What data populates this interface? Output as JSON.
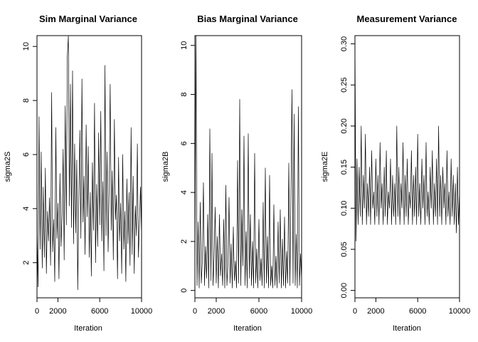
{
  "figure": {
    "background": "#ffffff",
    "line_color": "#000000"
  },
  "chart_data": [
    {
      "type": "line",
      "title": "Sim Marginal Variance",
      "xlabel": "Iteration",
      "ylabel": "sigma2S",
      "xlim": [
        0,
        10000
      ],
      "ylim": [
        0.7,
        10.4
      ],
      "xticks": [
        0,
        2000,
        6000,
        10000
      ],
      "xtick_labels": [
        "0",
        "2000",
        "6000",
        "10000"
      ],
      "yticks": [
        2,
        4,
        6,
        8,
        10
      ],
      "ytick_labels": [
        "2",
        "4",
        "6",
        "8",
        "10"
      ],
      "series": [
        {
          "x": [
            0,
            100,
            200,
            300,
            400,
            500,
            600,
            700,
            800,
            900,
            1000,
            1100,
            1200,
            1300,
            1400,
            1500,
            1600,
            1700,
            1800,
            1900,
            2000,
            2100,
            2200,
            2300,
            2400,
            2500,
            2600,
            2700,
            2800,
            2900,
            3000,
            3100,
            3200,
            3300,
            3400,
            3500,
            3600,
            3700,
            3800,
            3900,
            4000,
            4100,
            4200,
            4300,
            4400,
            4500,
            4600,
            4700,
            4800,
            4900,
            5000,
            5100,
            5200,
            5300,
            5400,
            5500,
            5600,
            5700,
            5800,
            5900,
            6000,
            6100,
            6200,
            6300,
            6400,
            6500,
            6600,
            6700,
            6800,
            6900,
            7000,
            7100,
            7200,
            7300,
            7400,
            7500,
            7600,
            7700,
            7800,
            7900,
            8000,
            8100,
            8200,
            8300,
            8400,
            8500,
            8600,
            8700,
            8800,
            8900,
            9000,
            9100,
            9200,
            9300,
            9400,
            9500,
            9600,
            9700,
            9800,
            9900,
            10000
          ],
          "y": [
            3.2,
            1.1,
            7.4,
            2.5,
            6.1,
            1.8,
            4.8,
            2.2,
            5.5,
            1.6,
            3.9,
            2.8,
            4.4,
            1.9,
            8.3,
            2.4,
            3.6,
            1.3,
            7.0,
            2.9,
            4.2,
            1.4,
            5.3,
            2.6,
            3.8,
            6.2,
            2.1,
            7.8,
            3.4,
            9.6,
            10.4,
            4.1,
            8.6,
            3.3,
            9.1,
            2.7,
            6.4,
            3.1,
            5.8,
            1.0,
            4.3,
            6.9,
            2.9,
            8.8,
            3.5,
            5.2,
            2.3,
            7.1,
            3.7,
            6.3,
            2.2,
            4.6,
            1.5,
            5.7,
            3.2,
            7.9,
            2.0,
            4.9,
            2.6,
            6.8,
            3.4,
            7.6,
            2.8,
            5.0,
            1.7,
            9.3,
            3.0,
            6.1,
            2.4,
            4.7,
            8.6,
            3.2,
            5.4,
            2.1,
            7.3,
            3.6,
            4.5,
            1.4,
            5.9,
            2.8,
            4.2,
            1.6,
            6.0,
            2.5,
            3.9,
            1.3,
            5.1,
            2.7,
            4.6,
            1.9,
            7.0,
            2.3,
            5.2,
            1.6,
            4.1,
            3.0,
            6.4,
            2.2,
            3.5,
            4.8,
            3.0
          ]
        }
      ]
    },
    {
      "type": "line",
      "title": "Bias Marginal Variance",
      "xlabel": "Iteration",
      "ylabel": "sigma2B",
      "xlim": [
        0,
        10000
      ],
      "ylim": [
        -0.3,
        10.4
      ],
      "xticks": [
        0,
        2000,
        6000,
        10000
      ],
      "xtick_labels": [
        "0",
        "2000",
        "6000",
        "10000"
      ],
      "yticks": [
        0,
        2,
        4,
        6,
        8,
        10
      ],
      "ytick_labels": [
        "0",
        "2",
        "4",
        "6",
        "8",
        "10"
      ],
      "series": [
        {
          "x": [
            0,
            100,
            200,
            300,
            400,
            500,
            600,
            700,
            800,
            900,
            1000,
            1100,
            1200,
            1300,
            1400,
            1500,
            1600,
            1700,
            1800,
            1900,
            2000,
            2100,
            2200,
            2300,
            2400,
            2500,
            2600,
            2700,
            2800,
            2900,
            3000,
            3100,
            3200,
            3300,
            3400,
            3500,
            3600,
            3700,
            3800,
            3900,
            4000,
            4100,
            4200,
            4300,
            4400,
            4500,
            4600,
            4700,
            4800,
            4900,
            5000,
            5100,
            5200,
            5300,
            5400,
            5500,
            5600,
            5700,
            5800,
            5900,
            6000,
            6100,
            6200,
            6300,
            6400,
            6500,
            6600,
            6700,
            6800,
            6900,
            7000,
            7100,
            7200,
            7300,
            7400,
            7500,
            7600,
            7700,
            7800,
            7900,
            8000,
            8100,
            8200,
            8300,
            8400,
            8500,
            8600,
            8700,
            8800,
            8900,
            9000,
            9100,
            9200,
            9300,
            9400,
            9500,
            9600,
            9700,
            9800,
            9900,
            10000
          ],
          "y": [
            0.4,
            10.4,
            0.2,
            2.8,
            0.1,
            3.6,
            0.3,
            1.2,
            4.4,
            0.2,
            1.8,
            0.5,
            3.1,
            0.1,
            6.6,
            0.4,
            5.6,
            0.2,
            1.4,
            3.4,
            0.3,
            2.2,
            0.1,
            3.1,
            0.6,
            1.5,
            0.2,
            2.9,
            0.1,
            4.3,
            0.2,
            1.1,
            3.8,
            0.3,
            1.9,
            0.1,
            2.6,
            0.4,
            1.2,
            0.1,
            5.3,
            0.3,
            7.8,
            0.2,
            3.3,
            1.0,
            6.3,
            0.2,
            2.4,
            0.1,
            6.4,
            0.5,
            3.1,
            0.2,
            2.0,
            0.1,
            5.6,
            0.3,
            1.7,
            0.1,
            2.9,
            0.4,
            1.3,
            0.2,
            3.6,
            0.1,
            5.0,
            0.3,
            2.2,
            0.1,
            4.7,
            0.2,
            1.0,
            0.1,
            3.5,
            0.2,
            1.4,
            0.1,
            2.8,
            0.3,
            3.3,
            0.1,
            2.1,
            0.2,
            3.0,
            0.1,
            1.6,
            0.3,
            5.2,
            0.2,
            3.8,
            8.2,
            0.3,
            7.2,
            0.2,
            2.3,
            0.1,
            7.5,
            0.2,
            1.5,
            0.4
          ]
        }
      ]
    },
    {
      "type": "line",
      "title": "Measurement Variance",
      "xlabel": "Iteration",
      "ylabel": "sigma2E",
      "xlim": [
        0,
        10000
      ],
      "ylim": [
        -0.009,
        0.31
      ],
      "xticks": [
        0,
        2000,
        6000,
        10000
      ],
      "xtick_labels": [
        "0",
        "2000",
        "6000",
        "10000"
      ],
      "yticks": [
        0,
        0.05,
        0.1,
        0.15,
        0.2,
        0.25,
        0.3
      ],
      "ytick_labels": [
        "0.00",
        "0.05",
        "0.10",
        "0.15",
        "0.20",
        "0.25",
        "0.30"
      ],
      "series": [
        {
          "x": [
            0,
            100,
            200,
            300,
            400,
            500,
            600,
            700,
            800,
            900,
            1000,
            1100,
            1200,
            1300,
            1400,
            1500,
            1600,
            1700,
            1800,
            1900,
            2000,
            2100,
            2200,
            2300,
            2400,
            2500,
            2600,
            2700,
            2800,
            2900,
            3000,
            3100,
            3200,
            3300,
            3400,
            3500,
            3600,
            3700,
            3800,
            3900,
            4000,
            4100,
            4200,
            4300,
            4400,
            4500,
            4600,
            4700,
            4800,
            4900,
            5000,
            5100,
            5200,
            5300,
            5400,
            5500,
            5600,
            5700,
            5800,
            5900,
            6000,
            6100,
            6200,
            6300,
            6400,
            6500,
            6600,
            6700,
            6800,
            6900,
            7000,
            7100,
            7200,
            7300,
            7400,
            7500,
            7600,
            7700,
            7800,
            7900,
            8000,
            8100,
            8200,
            8300,
            8400,
            8500,
            8600,
            8700,
            8800,
            8900,
            9000,
            9100,
            9200,
            9300,
            9400,
            9500,
            9600,
            9700,
            9800,
            9900,
            10000
          ],
          "y": [
            0.31,
            0.06,
            0.16,
            0.08,
            0.15,
            0.09,
            0.2,
            0.08,
            0.14,
            0.1,
            0.19,
            0.08,
            0.13,
            0.09,
            0.15,
            0.08,
            0.17,
            0.1,
            0.12,
            0.08,
            0.16,
            0.09,
            0.14,
            0.08,
            0.18,
            0.1,
            0.13,
            0.08,
            0.15,
            0.09,
            0.17,
            0.08,
            0.12,
            0.1,
            0.16,
            0.08,
            0.14,
            0.09,
            0.13,
            0.08,
            0.2,
            0.09,
            0.15,
            0.08,
            0.13,
            0.1,
            0.18,
            0.08,
            0.14,
            0.09,
            0.16,
            0.08,
            0.12,
            0.1,
            0.17,
            0.08,
            0.14,
            0.09,
            0.15,
            0.08,
            0.19,
            0.09,
            0.13,
            0.08,
            0.16,
            0.1,
            0.14,
            0.08,
            0.18,
            0.09,
            0.12,
            0.08,
            0.15,
            0.1,
            0.17,
            0.08,
            0.13,
            0.09,
            0.16,
            0.08,
            0.2,
            0.09,
            0.14,
            0.08,
            0.15,
            0.1,
            0.13,
            0.08,
            0.17,
            0.09,
            0.12,
            0.08,
            0.16,
            0.09,
            0.14,
            0.08,
            0.13,
            0.07,
            0.15,
            0.08,
            0.12
          ]
        }
      ]
    }
  ]
}
